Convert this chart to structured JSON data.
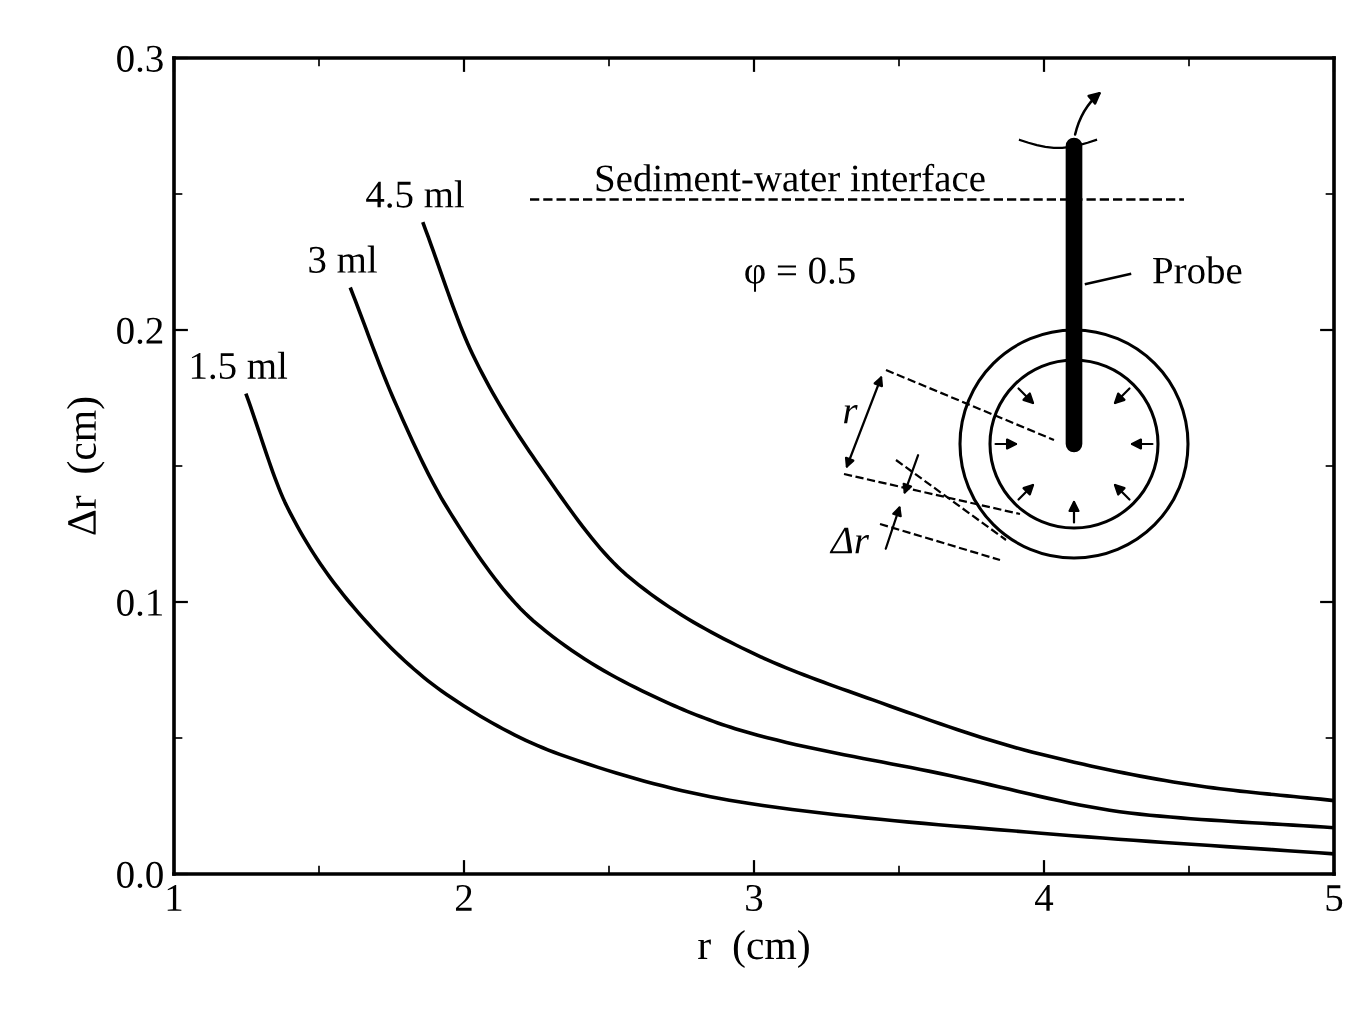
{
  "chart_data": {
    "type": "line",
    "xlabel": "r  (cm)",
    "ylabel": "Δr  (cm)",
    "xlim": [
      1,
      5
    ],
    "ylim": [
      0,
      0.3
    ],
    "xticks": [
      1,
      2,
      3,
      4,
      5
    ],
    "yticks": [
      {
        "value": 0,
        "label": "0.0"
      },
      {
        "value": 0.1,
        "label": "0.1"
      },
      {
        "value": 0.2,
        "label": "0.2"
      },
      {
        "value": 0.3,
        "label": "0.3"
      }
    ],
    "grid": false,
    "legend": false,
    "marker": "none",
    "line_style": "solid",
    "series": [
      {
        "name": "1.5 ml",
        "color": "#000000",
        "x": [
          1.25,
          1.39,
          1.62,
          1.94,
          2.33,
          2.98,
          3.99,
          5
        ],
        "values": [
          0.176,
          0.135,
          0.098,
          0.066,
          0.044,
          0.026,
          0.015,
          0.0074
        ]
      },
      {
        "name": "3 ml",
        "color": "#000000",
        "x": [
          1.61,
          1.76,
          1.94,
          2.24,
          2.68,
          2.98,
          3.64,
          4.33,
          5
        ],
        "values": [
          0.215,
          0.174,
          0.135,
          0.093,
          0.064,
          0.052,
          0.037,
          0.022,
          0.017
        ]
      },
      {
        "name": "4.5 ml",
        "color": "#000000",
        "x": [
          1.86,
          2.03,
          2.26,
          2.56,
          2.98,
          3.41,
          3.99,
          4.56,
          5
        ],
        "values": [
          0.239,
          0.191,
          0.15,
          0.11,
          0.082,
          0.064,
          0.044,
          0.032,
          0.027
        ]
      }
    ],
    "ref_lines": [
      {
        "axis": "y",
        "value": 0.248,
        "label": "Sediment-water interface",
        "color": "#000000",
        "line_style": "dashed"
      }
    ],
    "annotations": [
      "φ = 0.5",
      "Probe",
      "r",
      "Δr"
    ]
  }
}
